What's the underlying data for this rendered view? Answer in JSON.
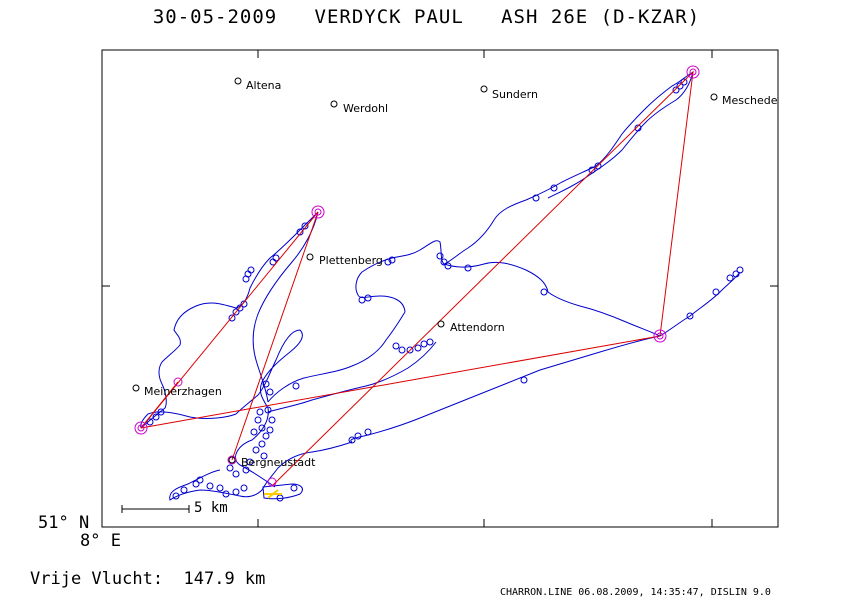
{
  "title": "30-05-2009   VERDYCK PAUL   ASH 26E (D-KZAR)",
  "corner": {
    "lat": "51° N",
    "lon": "8° E"
  },
  "distance_text": "Vrije Vlucht:  147.9 km",
  "scale": {
    "label": "5 km"
  },
  "footer": "CHARRON.LINE 06.08.2009, 14:35:47, DISLIN 9.0",
  "colors": {
    "track": "#0000cc",
    "task": "#dd0000",
    "turnpoint": "#cc00cc",
    "start": "#cc0000",
    "finish": "#ffcc00",
    "frame": "#000000"
  },
  "towns": [
    {
      "name": "Altena"
    },
    {
      "name": "Werdohl"
    },
    {
      "name": "Sundern"
    },
    {
      "name": "Meschede"
    },
    {
      "name": "Plettenberg"
    },
    {
      "name": "Attendorn"
    },
    {
      "name": "Meinerzhagen"
    },
    {
      "name": "Bergneustadt"
    }
  ]
}
